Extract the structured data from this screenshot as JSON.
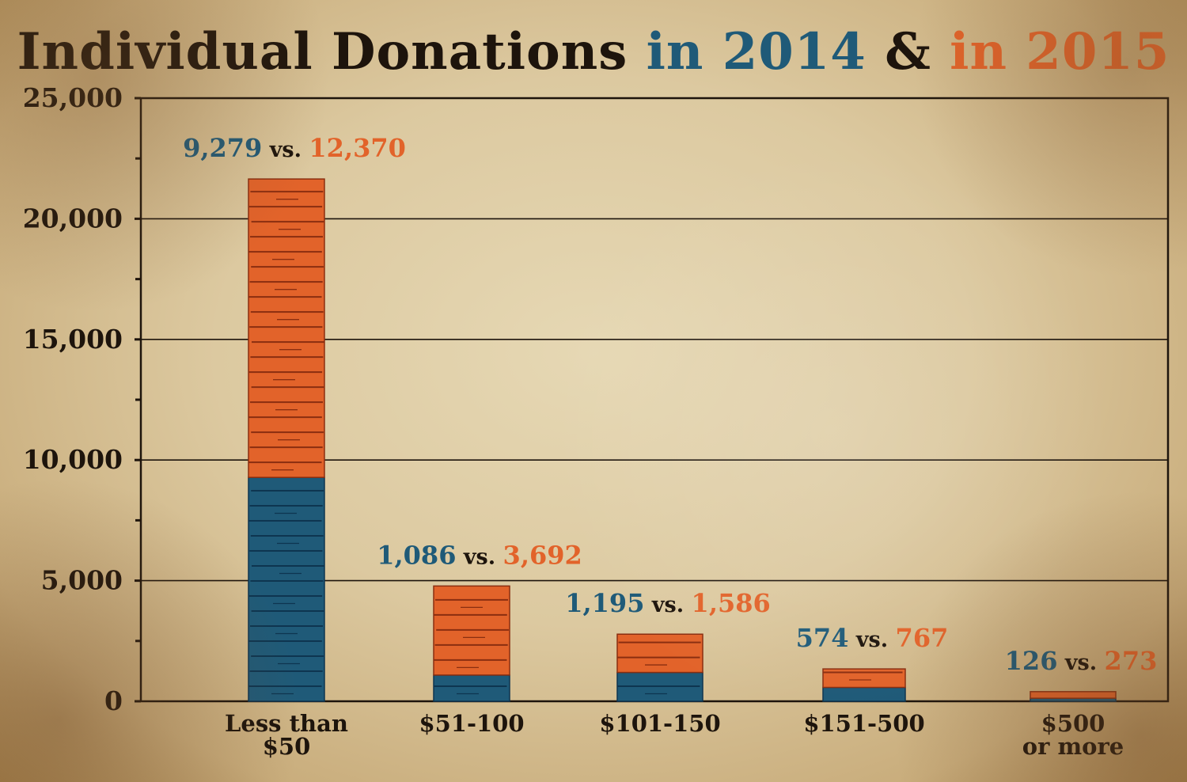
{
  "title": {
    "main": "Individual Donations",
    "part_2014": "in 2014",
    "amp": "&",
    "part_2015": "in 2015"
  },
  "colors": {
    "series_2014": "#1f5a78",
    "series_2015": "#e2632a",
    "ink": "#1d140c"
  },
  "chart_data": {
    "type": "bar",
    "stacked": true,
    "categories": [
      "Less than $50",
      "$51-100",
      "$101-150",
      "$151-500",
      "$500 or more"
    ],
    "category_lines": [
      [
        "Less than",
        "$50"
      ],
      [
        "$51-100"
      ],
      [
        "$101-150"
      ],
      [
        "$151-500"
      ],
      [
        "$500",
        "or more"
      ]
    ],
    "series": [
      {
        "name": "2014",
        "values": [
          9279,
          1086,
          1195,
          574,
          126
        ]
      },
      {
        "name": "2015",
        "values": [
          12370,
          3692,
          1586,
          767,
          273
        ]
      }
    ],
    "annotations": [
      {
        "a": "9,279",
        "vs": "vs.",
        "b": "12,370"
      },
      {
        "a": "1,086",
        "vs": "vs.",
        "b": "3,692"
      },
      {
        "a": "1,195",
        "vs": "vs.",
        "b": "1,586"
      },
      {
        "a": "574",
        "vs": "vs.",
        "b": "767"
      },
      {
        "a": "126",
        "vs": "vs.",
        "b": "273"
      }
    ],
    "y_ticks": [
      "0",
      "5,000",
      "10,000",
      "15,000",
      "20,000",
      "25,000"
    ],
    "ylim": [
      0,
      25000
    ],
    "grid": true,
    "xlabel": "",
    "ylabel": ""
  }
}
